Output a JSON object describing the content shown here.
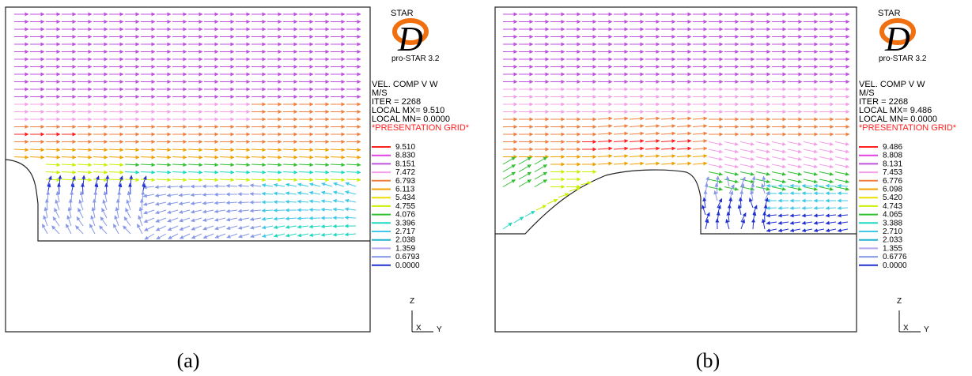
{
  "panels": [
    {
      "id": "a",
      "caption": "(a)",
      "logo": {
        "top": "STAR",
        "letter": "D",
        "version": "pro-STAR 3.2"
      },
      "info": [
        "VEL. COMP  V W",
        "M/S",
        "ITER =    2268",
        "LOCAL MX=  9.510",
        "LOCAL MN= 0.0000"
      ],
      "grid_label": "*PRESENTATION GRID*",
      "legend_values": [
        "9.510",
        "8.830",
        "8.151",
        "7.472",
        "6.793",
        "6.113",
        "5.434",
        "4.755",
        "4.076",
        "3.396",
        "2.717",
        "2.038",
        "1.359",
        "0.6793",
        "0.0000"
      ],
      "axis": {
        "z": "Z",
        "x": "X",
        "y": "Y"
      }
    },
    {
      "id": "b",
      "caption": "(b)",
      "logo": {
        "top": "STAR",
        "letter": "D",
        "version": "pro-STAR 3.2"
      },
      "info": [
        "VEL. COMP  V W",
        "M/S",
        "ITER =    2268",
        "LOCAL MX=  9.486",
        "LOCAL MN= 0.0000"
      ],
      "grid_label": "*PRESENTATION GRID*",
      "legend_values": [
        "9.486",
        "8.808",
        "8.131",
        "7.453",
        "6.776",
        "6.098",
        "5.420",
        "4.743",
        "4.065",
        "3.388",
        "2.710",
        "2.033",
        "1.355",
        "0.6776",
        "0.0000"
      ],
      "axis": {
        "z": "Z",
        "x": "X",
        "y": "Y"
      }
    }
  ],
  "colors": {
    "legend": [
      "#ff2020",
      "#e040e0",
      "#c050e0",
      "#f4a0e8",
      "#f08040",
      "#f0a000",
      "#e8e000",
      "#c8f000",
      "#30c030",
      "#20d8c0",
      "#40c8e8",
      "#20b0d0",
      "#b0a8f0",
      "#8898e8",
      "#2030d0"
    ],
    "grid_label": "#ff2020",
    "logo_ring": "#f07010"
  }
}
